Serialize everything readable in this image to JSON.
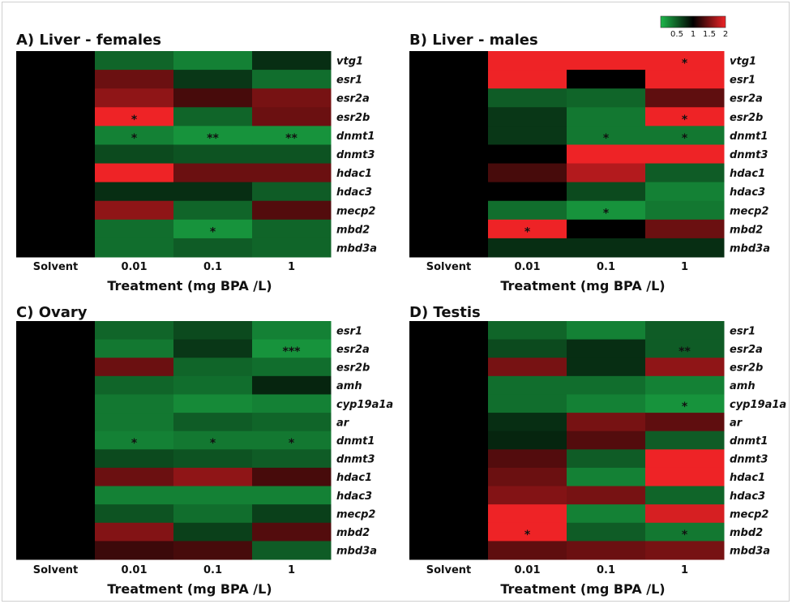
{
  "colors": {
    "low": "#1db84b",
    "mid": "#000000",
    "high": "#ee2326"
  },
  "legend": {
    "ticks": [
      "0.5",
      "1",
      "1.5",
      "2"
    ],
    "min": 0,
    "max": 2
  },
  "chart_data": [
    {
      "type": "heatmap",
      "title": "A) Liver - females",
      "xlabel": "Treatment (mg BPA /L)",
      "categories": [
        "Solvent",
        "0.01",
        "0.1",
        "1"
      ],
      "genes": [
        "vtg1",
        "esr1",
        "esr2a",
        "esr2b",
        "dnmt1",
        "dnmt3",
        "hdac1",
        "hdac3",
        "mecp2",
        "mbd2",
        "mbd3a"
      ],
      "values": [
        [
          1,
          0.45,
          0.3,
          0.75
        ],
        [
          1,
          1.45,
          0.7,
          0.4
        ],
        [
          1,
          1.6,
          1.3,
          1.5
        ],
        [
          1,
          2.0,
          0.45,
          1.45
        ],
        [
          1,
          0.3,
          0.2,
          0.2
        ],
        [
          1,
          0.6,
          0.55,
          0.55
        ],
        [
          1,
          2.0,
          1.45,
          1.45
        ],
        [
          1,
          0.75,
          0.75,
          0.5
        ],
        [
          1,
          1.6,
          0.45,
          1.35
        ],
        [
          1,
          0.4,
          0.2,
          0.45
        ],
        [
          1,
          0.4,
          0.5,
          0.45
        ]
      ],
      "significance": [
        [
          "",
          "",
          "",
          ""
        ],
        [
          "",
          "",
          "",
          ""
        ],
        [
          "",
          "",
          "",
          ""
        ],
        [
          "",
          "*",
          "",
          ""
        ],
        [
          "",
          "*",
          "**",
          "**"
        ],
        [
          "",
          "",
          "",
          ""
        ],
        [
          "",
          "",
          "",
          ""
        ],
        [
          "",
          "",
          "",
          ""
        ],
        [
          "",
          "",
          "",
          ""
        ],
        [
          "",
          "",
          "*",
          ""
        ],
        [
          "",
          "",
          "",
          ""
        ]
      ]
    },
    {
      "type": "heatmap",
      "title": "B) Liver - males",
      "xlabel": "Treatment (mg BPA /L)",
      "categories": [
        "Solvent",
        "0.01",
        "0.1",
        "1"
      ],
      "genes": [
        "vtg1",
        "esr1",
        "esr2a",
        "esr2b",
        "dnmt1",
        "dnmt3",
        "hdac1",
        "hdac3",
        "mecp2",
        "mbd2",
        "mbd3a"
      ],
      "values": [
        [
          1,
          2.0,
          2.0,
          2.0
        ],
        [
          1,
          2.0,
          1.0,
          2.0
        ],
        [
          1,
          0.5,
          0.45,
          1.4
        ],
        [
          1,
          0.7,
          0.35,
          2.0
        ],
        [
          1,
          0.7,
          0.35,
          0.35
        ],
        [
          1,
          1.0,
          2.0,
          2.0
        ],
        [
          1,
          1.3,
          1.75,
          0.5
        ],
        [
          1,
          1.0,
          0.6,
          0.3
        ],
        [
          1,
          0.4,
          0.2,
          0.35
        ],
        [
          1,
          2.0,
          1.0,
          1.45
        ],
        [
          1,
          0.75,
          0.75,
          0.75
        ]
      ],
      "significance": [
        [
          "",
          "",
          "",
          "*"
        ],
        [
          "",
          "",
          "",
          ""
        ],
        [
          "",
          "",
          "",
          ""
        ],
        [
          "",
          "",
          "",
          "*"
        ],
        [
          "",
          "",
          "*",
          "*"
        ],
        [
          "",
          "",
          "",
          ""
        ],
        [
          "",
          "",
          "",
          ""
        ],
        [
          "",
          "",
          "",
          ""
        ],
        [
          "",
          "",
          "*",
          ""
        ],
        [
          "",
          "*",
          "",
          ""
        ],
        [
          "",
          "",
          "",
          ""
        ]
      ]
    },
    {
      "type": "heatmap",
      "title": "C) Ovary",
      "xlabel": "Treatment (mg BPA /L)",
      "categories": [
        "Solvent",
        "0.01",
        "0.1",
        "1"
      ],
      "genes": [
        "esr1",
        "esr2a",
        "esr2b",
        "amh",
        "cyp19a1a",
        "ar",
        "dnmt1",
        "dnmt3",
        "hdac1",
        "hdac3",
        "mecp2",
        "mbd2",
        "mbd3a"
      ],
      "values": [
        [
          1,
          0.45,
          0.6,
          0.3
        ],
        [
          1,
          0.35,
          0.7,
          0.2
        ],
        [
          1,
          1.45,
          0.45,
          0.4
        ],
        [
          1,
          0.45,
          0.4,
          0.8
        ],
        [
          1,
          0.35,
          0.25,
          0.3
        ],
        [
          1,
          0.35,
          0.5,
          0.45
        ],
        [
          1,
          0.3,
          0.35,
          0.35
        ],
        [
          1,
          0.6,
          0.55,
          0.5
        ],
        [
          1,
          1.45,
          1.6,
          1.3
        ],
        [
          1,
          0.3,
          0.3,
          0.3
        ],
        [
          1,
          0.55,
          0.4,
          0.65
        ],
        [
          1,
          1.55,
          0.65,
          1.35
        ],
        [
          1,
          1.25,
          1.3,
          0.5
        ]
      ],
      "significance": [
        [
          "",
          "",
          "",
          ""
        ],
        [
          "",
          "",
          "",
          "***"
        ],
        [
          "",
          "",
          "",
          ""
        ],
        [
          "",
          "",
          "",
          ""
        ],
        [
          "",
          "",
          "",
          ""
        ],
        [
          "",
          "",
          "",
          ""
        ],
        [
          "",
          "*",
          "*",
          "*"
        ],
        [
          "",
          "",
          "",
          ""
        ],
        [
          "",
          "",
          "",
          ""
        ],
        [
          "",
          "",
          "",
          ""
        ],
        [
          "",
          "",
          "",
          ""
        ],
        [
          "",
          "",
          "",
          ""
        ],
        [
          "",
          "",
          "",
          ""
        ]
      ]
    },
    {
      "type": "heatmap",
      "title": "D) Testis",
      "xlabel": "Treatment (mg BPA /L)",
      "categories": [
        "Solvent",
        "0.01",
        "0.1",
        "1"
      ],
      "genes": [
        "esr1",
        "esr2a",
        "esr2b",
        "amh",
        "cyp19a1a",
        "ar",
        "dnmt1",
        "dnmt3",
        "hdac1",
        "hdac3",
        "mecp2",
        "mbd2",
        "mbd3a"
      ],
      "values": [
        [
          1,
          0.45,
          0.3,
          0.5
        ],
        [
          1,
          0.6,
          0.75,
          0.5
        ],
        [
          1,
          1.5,
          0.75,
          1.6
        ],
        [
          1,
          0.4,
          0.4,
          0.3
        ],
        [
          1,
          0.4,
          0.3,
          0.2
        ],
        [
          1,
          0.75,
          1.5,
          1.4
        ],
        [
          1,
          0.8,
          1.35,
          0.5
        ],
        [
          1,
          1.35,
          0.5,
          2.0
        ],
        [
          1,
          1.45,
          0.3,
          2.0
        ],
        [
          1,
          1.55,
          1.5,
          0.45
        ],
        [
          1,
          2.0,
          0.3,
          1.9
        ],
        [
          1,
          2.0,
          0.5,
          0.35
        ],
        [
          1,
          1.4,
          1.45,
          1.5
        ]
      ],
      "significance": [
        [
          "",
          "",
          "",
          ""
        ],
        [
          "",
          "",
          "",
          "**"
        ],
        [
          "",
          "",
          "",
          ""
        ],
        [
          "",
          "",
          "",
          ""
        ],
        [
          "",
          "",
          "",
          "*"
        ],
        [
          "",
          "",
          "",
          ""
        ],
        [
          "",
          "",
          "",
          ""
        ],
        [
          "",
          "",
          "",
          ""
        ],
        [
          "",
          "",
          "",
          ""
        ],
        [
          "",
          "",
          "",
          ""
        ],
        [
          "",
          "",
          "",
          ""
        ],
        [
          "",
          "*",
          "",
          "*"
        ],
        [
          "",
          "",
          "",
          ""
        ]
      ]
    }
  ]
}
